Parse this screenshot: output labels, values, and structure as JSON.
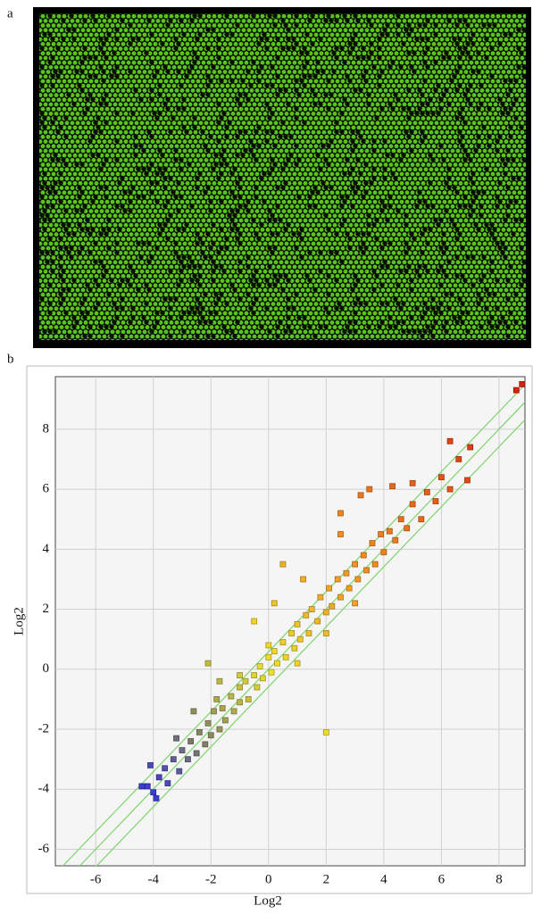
{
  "panel_labels": [
    "a",
    "b"
  ],
  "chart_data": {
    "type": "scatter",
    "x_label": "Log2",
    "y_label": "Log2",
    "xlim": [
      -7.4,
      8.9
    ],
    "ylim": [
      -6.55,
      9.75
    ],
    "xticks": [
      -6,
      -4,
      -2,
      0,
      2,
      4,
      6,
      8
    ],
    "yticks": [
      -6,
      -4,
      -2,
      0,
      2,
      4,
      6,
      8
    ],
    "grid": true,
    "reference_lines": {
      "slope": 1,
      "offsets": [
        0.585,
        0,
        -0.585
      ],
      "color": "#7dd46a"
    },
    "colormap": {
      "stops": [
        -4,
        -2.5,
        0,
        3.5,
        8.5
      ],
      "colors": [
        "#3c3cd2",
        "#7a7a6a",
        "#eee02c",
        "#f08c22",
        "#d8220e"
      ]
    },
    "x": [
      -4.2,
      -4.0,
      -3.8,
      -4.4,
      -3.6,
      -3.9,
      -3.5,
      -3.3,
      -3.1,
      -3.0,
      -2.8,
      -2.7,
      -2.5,
      -2.4,
      -2.2,
      -2.1,
      -2.0,
      -1.9,
      -1.7,
      -1.6,
      -1.5,
      -1.3,
      -1.2,
      -1.0,
      -1.0,
      -0.8,
      -0.7,
      -0.5,
      -0.4,
      -0.3,
      -0.2,
      0,
      0.1,
      0.2,
      0.3,
      0.5,
      0.6,
      0.8,
      0.9,
      1.0,
      1.1,
      1.3,
      1.4,
      1.5,
      1.7,
      1.8,
      2.0,
      2.1,
      2.2,
      2.4,
      2.5,
      2.7,
      2.8,
      3.0,
      3.1,
      3.3,
      3.4,
      3.6,
      3.7,
      3.9,
      4.0,
      4.2,
      4.4,
      4.6,
      4.8,
      5.0,
      5.3,
      5.5,
      5.8,
      6.0,
      6.3,
      6.6,
      6.9,
      7.0,
      8.6,
      8.8,
      6.3,
      3.2,
      3.5,
      0.5,
      2.0,
      -2.1,
      -1.7,
      -0.5,
      1.2,
      2.5,
      -2.6,
      -4.1,
      -3.2,
      4.3,
      1.0,
      2.0,
      0,
      -1.0,
      3.0,
      5.0,
      -1.8,
      2.5,
      0.2
    ],
    "values": [
      -3.9,
      -4.1,
      -3.6,
      -3.9,
      -3.3,
      -4.3,
      -3.8,
      -3.0,
      -3.4,
      -2.7,
      -3.0,
      -2.4,
      -2.8,
      -2.1,
      -2.5,
      -1.8,
      -2.2,
      -1.4,
      -2.0,
      -1.3,
      -1.7,
      -0.9,
      -1.4,
      -0.6,
      -1.1,
      -0.4,
      -1.0,
      -0.2,
      -0.6,
      0.1,
      -0.3,
      0.4,
      -0.1,
      0.6,
      0.2,
      0.9,
      0.4,
      1.2,
      0.7,
      1.5,
      1.0,
      1.8,
      1.2,
      2.0,
      1.6,
      2.4,
      1.9,
      2.7,
      2.1,
      3.0,
      2.4,
      3.2,
      2.7,
      3.5,
      3.0,
      3.8,
      3.3,
      4.2,
      3.5,
      4.5,
      3.9,
      4.6,
      4.3,
      5.0,
      4.7,
      5.5,
      5.0,
      5.9,
      5.6,
      6.4,
      6.0,
      7.0,
      6.3,
      7.4,
      9.3,
      9.5,
      7.6,
      5.8,
      6.0,
      3.5,
      -2.1,
      0.2,
      -0.4,
      1.6,
      3.0,
      4.5,
      -1.4,
      -3.2,
      -2.3,
      6.1,
      0.2,
      1.2,
      0.8,
      -0.2,
      2.2,
      6.2,
      -1.0,
      5.2,
      2.2
    ]
  }
}
